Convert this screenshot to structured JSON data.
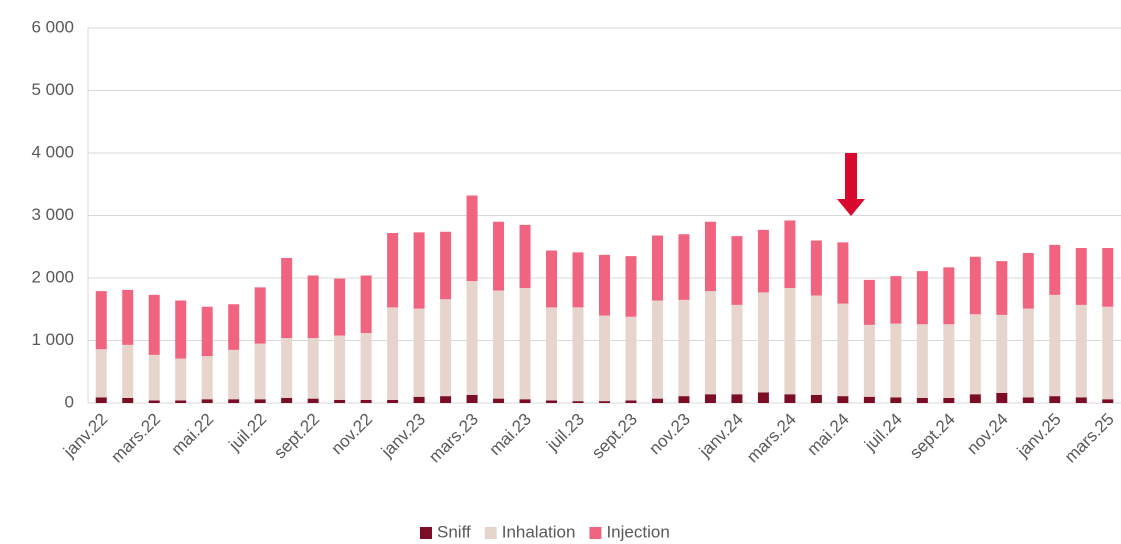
{
  "chart_data": {
    "type": "stacked-bar",
    "categories": [
      "janv.22",
      null,
      "mars.22",
      null,
      "mai.22",
      null,
      "juil.22",
      null,
      "sept.22",
      null,
      "nov.22",
      null,
      "janv.23",
      null,
      "mars.23",
      null,
      "mai.23",
      null,
      "juil.23",
      null,
      "sept.23",
      null,
      "nov.23",
      null,
      "janv.24",
      null,
      "mars.24",
      null,
      "mai.24",
      null,
      "juil.24",
      null,
      "sept.24",
      null,
      "nov.24",
      null,
      "janv.25",
      null,
      "mars.25"
    ],
    "series": [
      {
        "name": "Sniff",
        "color": "#7b0d26",
        "values": [
          90,
          80,
          40,
          40,
          60,
          60,
          60,
          80,
          70,
          50,
          50,
          50,
          100,
          110,
          130,
          70,
          60,
          40,
          30,
          30,
          40,
          70,
          110,
          140,
          140,
          170,
          140,
          130,
          110,
          100,
          90,
          80,
          80,
          140,
          160,
          90,
          110,
          90,
          60
        ]
      },
      {
        "name": "Inhalation",
        "color": "#e7d5cd",
        "values": [
          770,
          850,
          730,
          670,
          690,
          790,
          890,
          960,
          970,
          1030,
          1070,
          1480,
          1410,
          1550,
          1820,
          1730,
          1780,
          1490,
          1500,
          1370,
          1340,
          1570,
          1540,
          1650,
          1430,
          1600,
          1700,
          1590,
          1480,
          1150,
          1180,
          1180,
          1180,
          1280,
          1250,
          1420,
          1620,
          1480,
          1480
        ]
      },
      {
        "name": "Injection",
        "color": "#f1647f",
        "values": [
          930,
          880,
          960,
          930,
          790,
          730,
          900,
          1280,
          1000,
          910,
          920,
          1190,
          1220,
          1080,
          1370,
          1100,
          1010,
          910,
          880,
          970,
          970,
          1040,
          1050,
          1110,
          1100,
          1000,
          1080,
          880,
          980,
          720,
          760,
          850,
          910,
          920,
          860,
          890,
          800,
          910,
          940
        ]
      }
    ],
    "ylim": [
      0,
      6000
    ],
    "yticks": [
      0,
      {
        "value": 1000,
        "label": "1 000"
      },
      {
        "value": 2000,
        "label": "2 000"
      },
      {
        "value": 3000,
        "label": "3 000"
      },
      {
        "value": 4000,
        "label": "4 000"
      },
      {
        "value": 5000,
        "label": "5 000"
      },
      {
        "value": 6000,
        "label": "6 000"
      }
    ],
    "grid": true,
    "legend": "bottom"
  }
}
